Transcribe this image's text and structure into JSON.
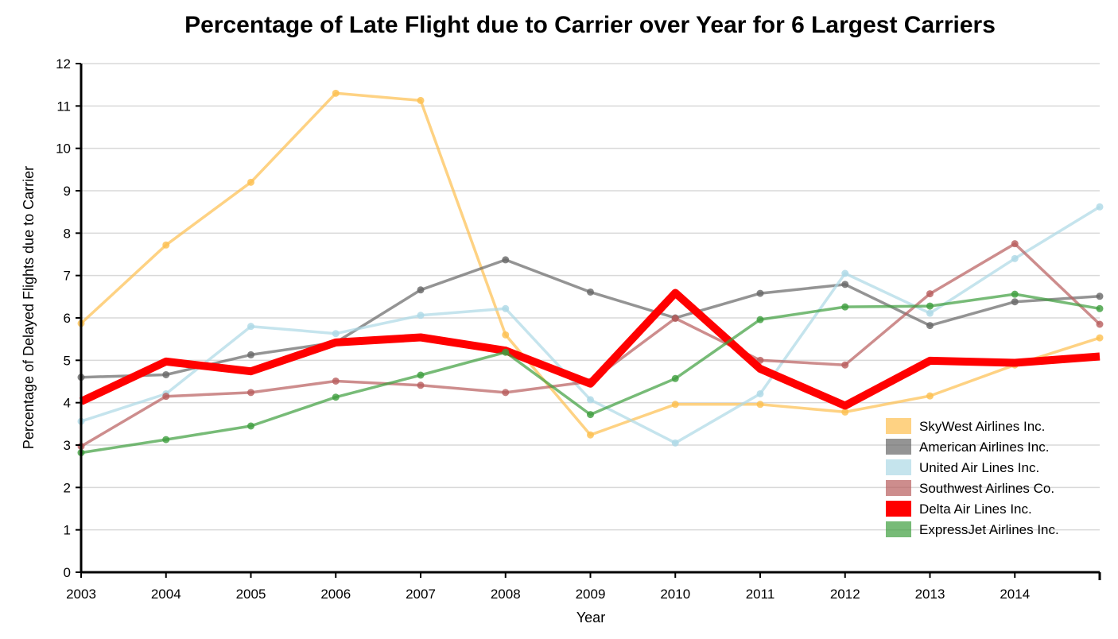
{
  "chart_data": {
    "type": "line",
    "title": "Percentage of Late Flight due to Carrier over Year for 6 Largest Carriers",
    "xlabel": "Year",
    "ylabel": "Percentage of Delayed Flights due to Carrier",
    "x": [
      2003,
      2004,
      2005,
      2006,
      2007,
      2008,
      2009,
      2010,
      2011,
      2012,
      2013,
      2014,
      2015
    ],
    "x_tick_labels": [
      "2003",
      "2004",
      "2005",
      "2006",
      "2007",
      "2008",
      "2009",
      "2010",
      "2011",
      "2012",
      "2013",
      "2014"
    ],
    "xlim": [
      2003,
      2015
    ],
    "ylim": [
      0,
      12
    ],
    "y_ticks": [
      "0",
      "1",
      "2",
      "3",
      "4",
      "5",
      "6",
      "7",
      "8",
      "9",
      "10",
      "11",
      "12"
    ],
    "grid": true,
    "legend_position": "bottom-right",
    "series": [
      {
        "name": "SkyWest Airlines Inc.",
        "color": "#fdbf4f",
        "values": [
          5.87,
          7.72,
          9.2,
          11.3,
          11.13,
          5.6,
          3.24,
          3.96,
          3.96,
          3.78,
          4.16,
          4.89,
          5.53
        ]
      },
      {
        "name": "American Airlines Inc.",
        "color": "#666666",
        "values": [
          4.6,
          4.66,
          5.13,
          5.42,
          6.66,
          7.37,
          6.61,
          6.0,
          6.58,
          6.79,
          5.82,
          6.38,
          6.51
        ]
      },
      {
        "name": "United Air Lines Inc.",
        "color": "#add8e6",
        "values": [
          3.56,
          4.21,
          5.8,
          5.63,
          6.06,
          6.22,
          4.07,
          3.05,
          4.21,
          7.05,
          6.11,
          7.4,
          8.62
        ]
      },
      {
        "name": "Southwest Airlines Co.",
        "color": "#b85c5c",
        "values": [
          2.97,
          4.15,
          4.24,
          4.51,
          4.41,
          4.24,
          4.5,
          5.99,
          5.0,
          4.89,
          6.57,
          7.75,
          5.85
        ]
      },
      {
        "name": "Delta Air Lines Inc.",
        "color": "#ff0000",
        "values": [
          4.03,
          4.97,
          4.74,
          5.42,
          5.54,
          5.23,
          4.45,
          6.59,
          4.8,
          3.93,
          4.99,
          4.94,
          5.09
        ]
      },
      {
        "name": "ExpressJet Airlines Inc.",
        "color": "#3d9e3d",
        "values": [
          2.82,
          3.13,
          3.45,
          4.13,
          4.65,
          5.19,
          3.72,
          4.57,
          5.96,
          6.26,
          6.28,
          6.56,
          6.22
        ]
      }
    ]
  }
}
